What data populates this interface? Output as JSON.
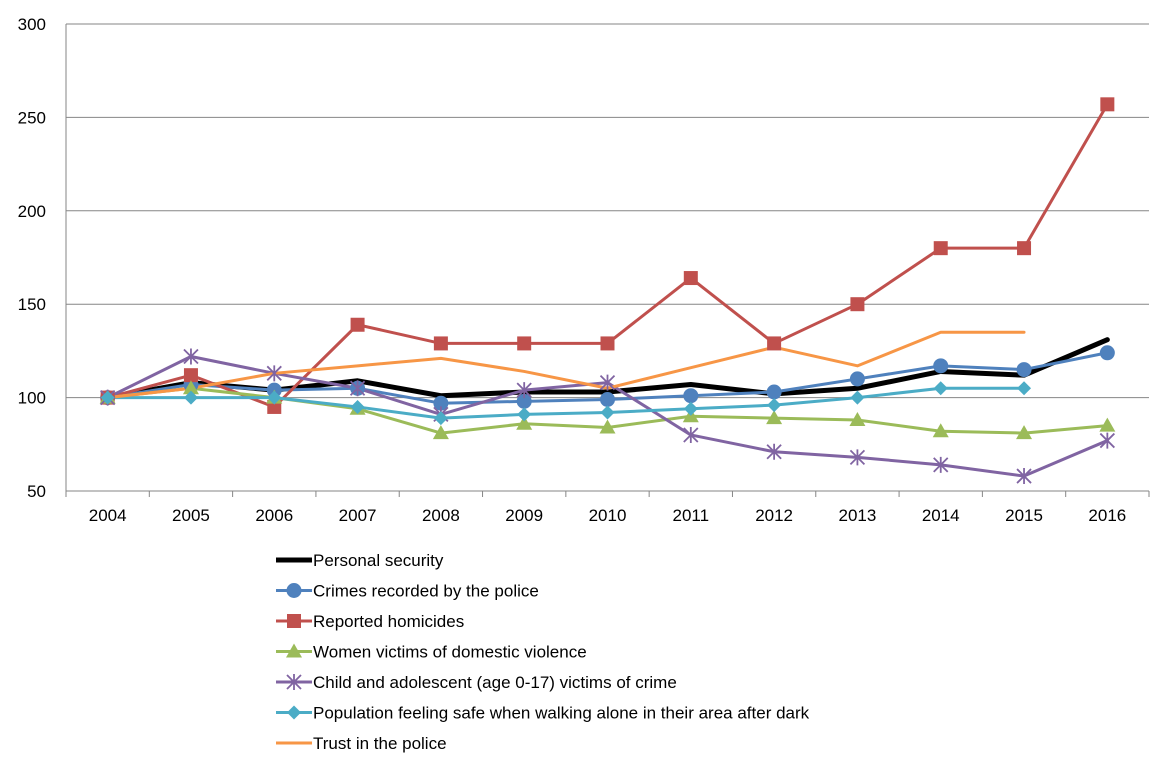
{
  "chart_data": {
    "type": "line",
    "title": "",
    "xlabel": "",
    "ylabel": "",
    "ylim": [
      50,
      300
    ],
    "yticks": [
      50,
      100,
      150,
      200,
      250,
      300
    ],
    "categories": [
      "2004",
      "2005",
      "2006",
      "2007",
      "2008",
      "2009",
      "2010",
      "2011",
      "2012",
      "2013",
      "2014",
      "2015",
      "2016"
    ],
    "grid": "horizontal",
    "legend_position": "bottom",
    "series": [
      {
        "name": "Personal security",
        "color": "#000000",
        "marker": "none",
        "values": [
          100,
          108,
          104,
          109,
          101,
          103,
          103,
          107,
          102,
          105,
          114,
          112,
          131
        ]
      },
      {
        "name": "Crimes recorded by the police",
        "color": "#4F81BD",
        "marker": "circle",
        "values": [
          100,
          107,
          104,
          105,
          97,
          98,
          99,
          101,
          103,
          110,
          117,
          115,
          124
        ]
      },
      {
        "name": "Reported homicides",
        "color": "#C0504D",
        "marker": "square",
        "values": [
          100,
          112,
          95,
          139,
          129,
          129,
          129,
          164,
          129,
          150,
          180,
          180,
          257
        ]
      },
      {
        "name": "Women victims of domestic violence",
        "color": "#9BBB59",
        "marker": "triangle",
        "values": [
          100,
          105,
          100,
          94,
          81,
          86,
          84,
          90,
          89,
          88,
          82,
          81,
          85
        ]
      },
      {
        "name": "Child and adolescent (age 0-17) victims of crime",
        "color": "#8064A2",
        "marker": "star",
        "values": [
          100,
          122,
          113,
          105,
          91,
          104,
          108,
          80,
          71,
          68,
          64,
          58,
          77
        ]
      },
      {
        "name": "Population feeling safe when walking alone in their area after dark",
        "color": "#4BACC6",
        "marker": "diamond",
        "values": [
          100,
          100,
          100,
          95,
          89,
          91,
          92,
          94,
          96,
          100,
          105,
          105,
          null
        ]
      },
      {
        "name": "Trust in the police",
        "color": "#F79646",
        "marker": "none",
        "values": [
          100,
          105,
          113,
          117,
          121,
          114,
          105,
          116,
          127,
          117,
          135,
          135,
          null
        ]
      }
    ]
  }
}
